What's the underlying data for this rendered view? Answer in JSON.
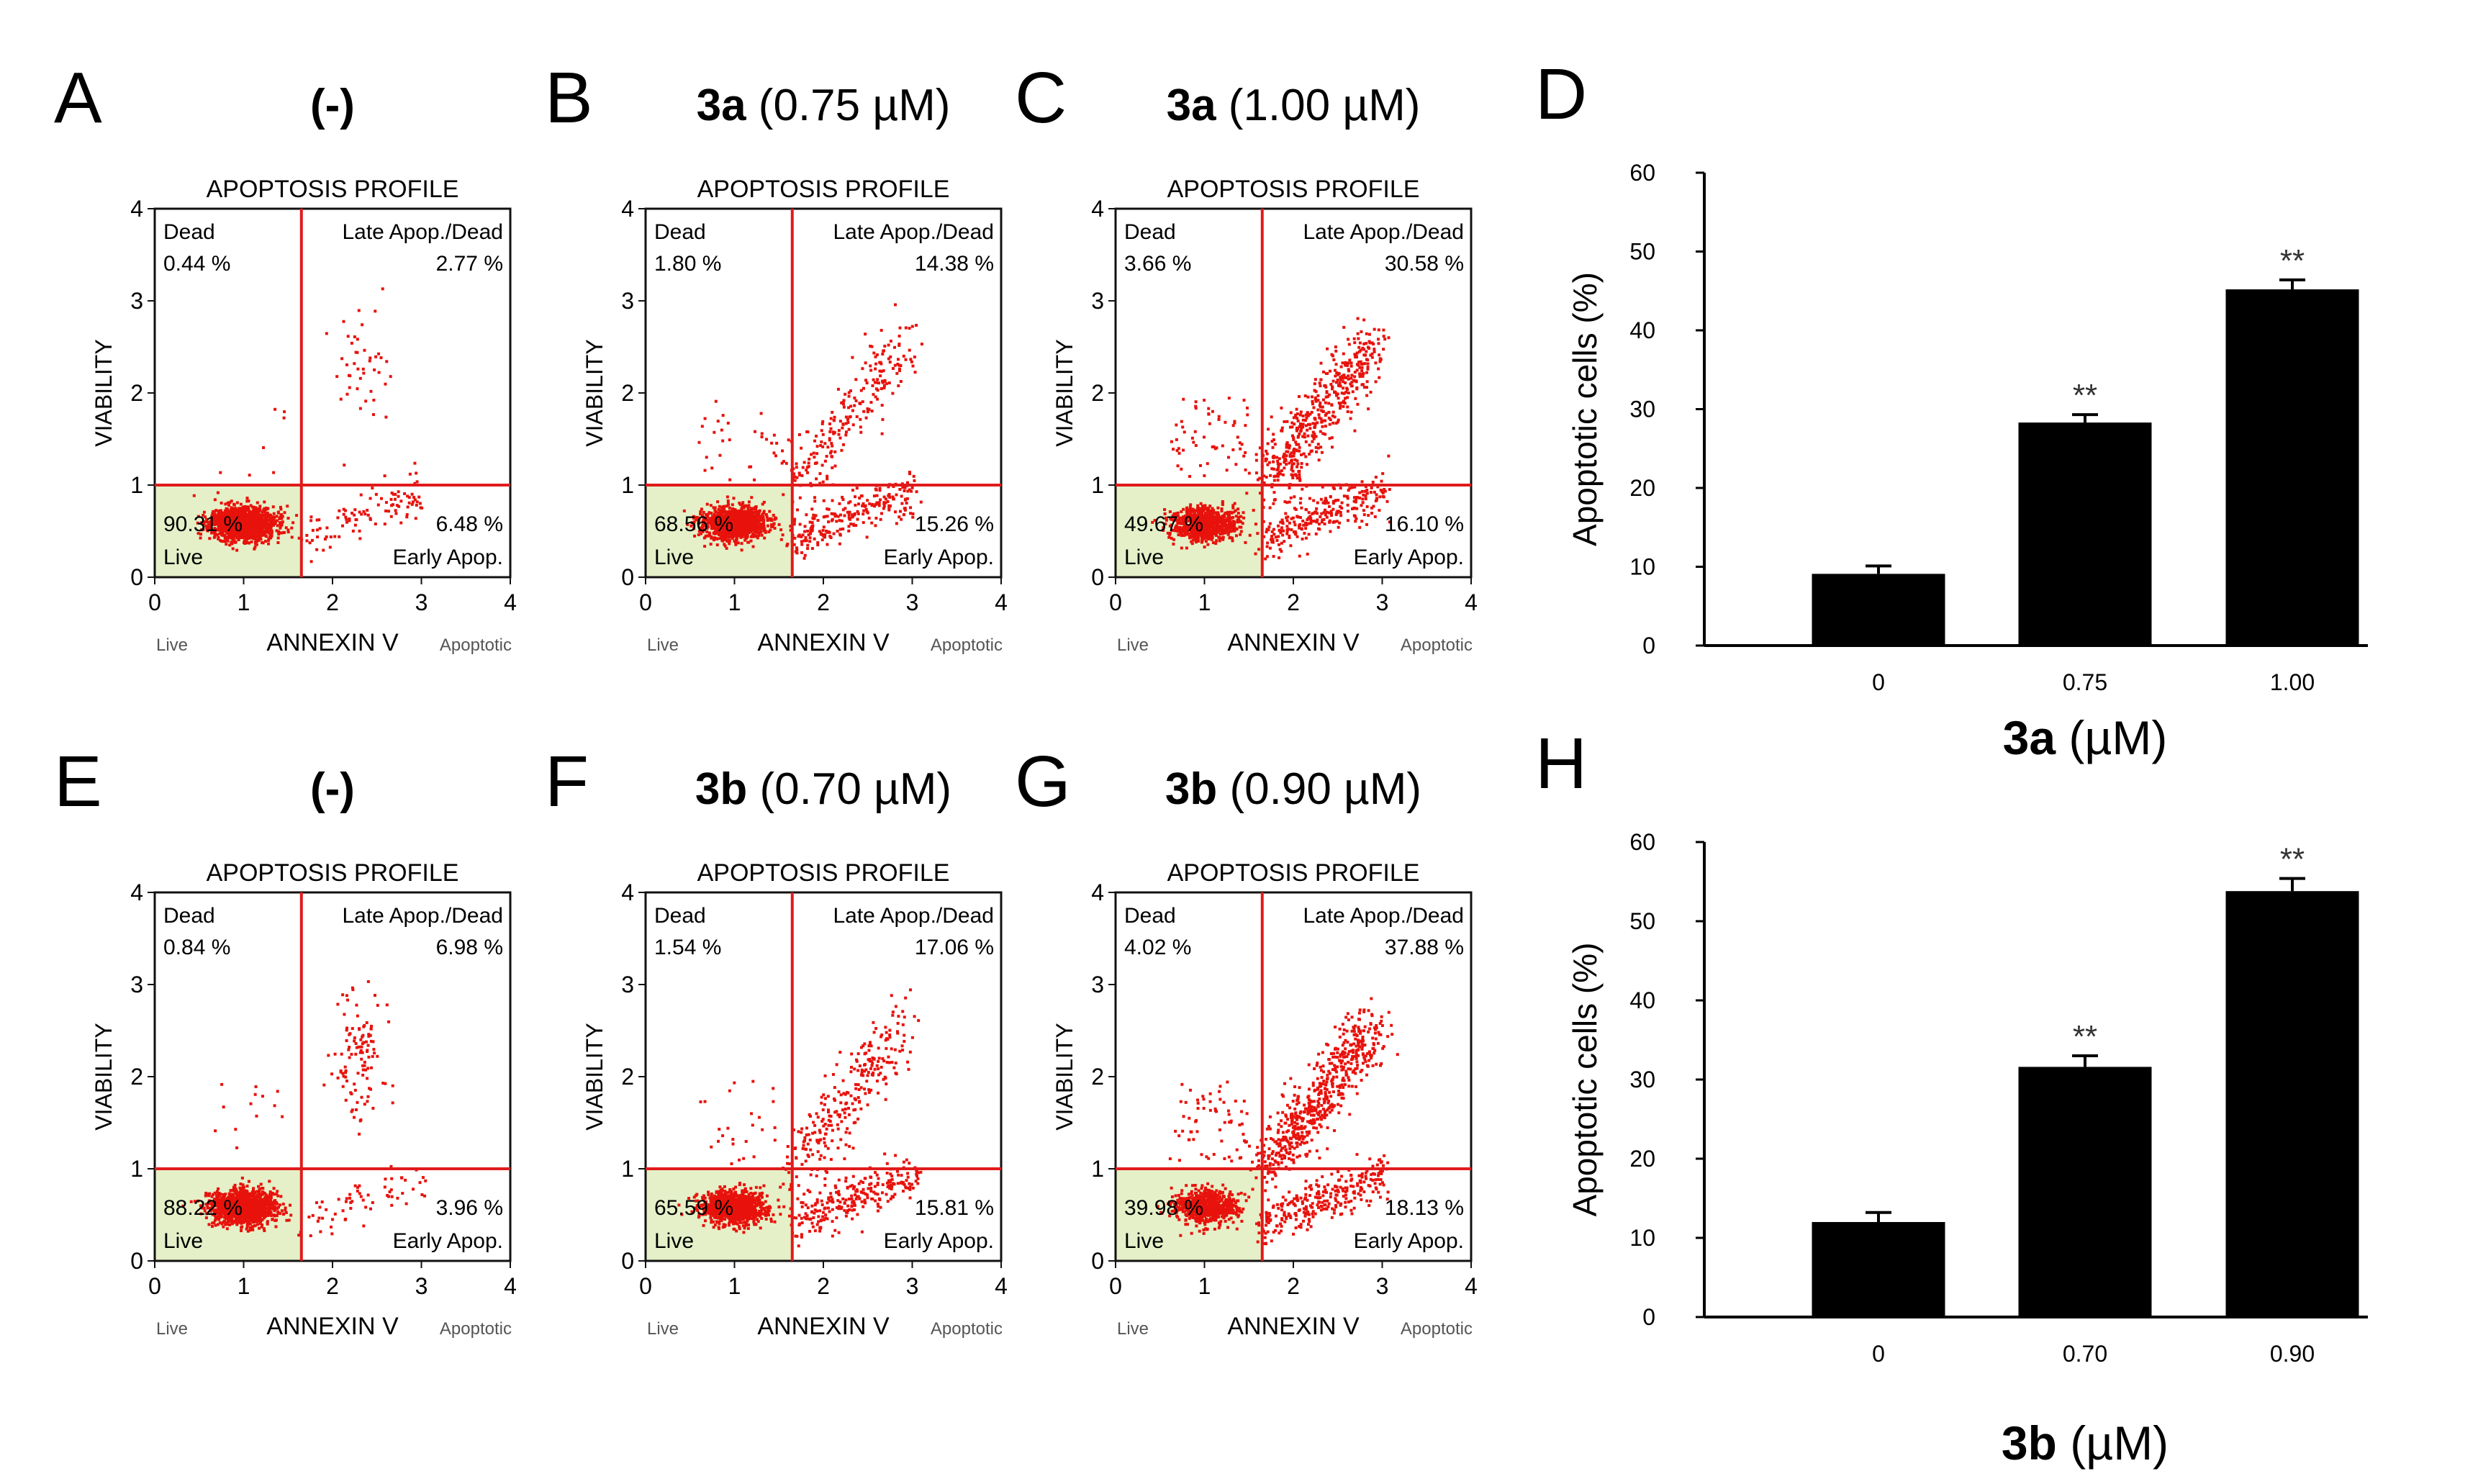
{
  "colors": {
    "quad_line": "#e01b1b",
    "live_fill": "#e5f0c8",
    "dot": "#e8120c",
    "bar": "#000000",
    "axis": "#000000",
    "text": "#000000",
    "subtle": "#555555"
  },
  "panels": [
    {
      "letter": "A",
      "bold": "",
      "title": "(-)",
      "seed": 11,
      "q": {
        "dead_label": "Dead",
        "dead_pct": "0.44 %",
        "late_label": "Late Apop./Dead",
        "late_pct": "2.77 %",
        "live_label": "Live",
        "live_pct": "90.31 %",
        "early_label": "Early Apop.",
        "early_pct": "6.48 %"
      }
    },
    {
      "letter": "B",
      "bold": "3a",
      "title": " (0.75 µM)",
      "seed": 23,
      "q": {
        "dead_label": "Dead",
        "dead_pct": "1.80 %",
        "late_label": "Late Apop./Dead",
        "late_pct": "14.38 %",
        "live_label": "Live",
        "live_pct": "68.56 %",
        "early_label": "Early Apop.",
        "early_pct": "15.26 %"
      }
    },
    {
      "letter": "C",
      "bold": "3a",
      "title": " (1.00 µM)",
      "seed": 37,
      "q": {
        "dead_label": "Dead",
        "dead_pct": "3.66 %",
        "late_label": "Late Apop./Dead",
        "late_pct": "30.58 %",
        "live_label": "Live",
        "live_pct": "49.67 %",
        "early_label": "Early Apop.",
        "early_pct": "16.10 %"
      }
    },
    {
      "letter": "E",
      "bold": "",
      "title": "(-)",
      "seed": 41,
      "q": {
        "dead_label": "Dead",
        "dead_pct": "0.84 %",
        "late_label": "Late Apop./Dead",
        "late_pct": "6.98 %",
        "live_label": "Live",
        "live_pct": "88.22 %",
        "early_label": "Early Apop.",
        "early_pct": "3.96 %"
      }
    },
    {
      "letter": "F",
      "bold": "3b",
      "title": " (0.70 µM)",
      "seed": 53,
      "q": {
        "dead_label": "Dead",
        "dead_pct": "1.54 %",
        "late_label": "Late Apop./Dead",
        "late_pct": "17.06 %",
        "live_label": "Live",
        "live_pct": "65.59 %",
        "early_label": "Early Apop.",
        "early_pct": "15.81 %"
      }
    },
    {
      "letter": "G",
      "bold": "3b",
      "title": " (0.90 µM)",
      "seed": 67,
      "q": {
        "dead_label": "Dead",
        "dead_pct": "4.02 %",
        "late_label": "Late Apop./Dead",
        "late_pct": "37.88 %",
        "live_label": "Live",
        "live_pct": "39.98 %",
        "early_label": "Early Apop.",
        "early_pct": "18.13 %"
      }
    }
  ],
  "profile_common": {
    "title": "APOPTOSIS PROFILE",
    "ylabel": "VIABILITY",
    "xlabel": "ANNEXIN V",
    "x_left_label": "Live",
    "x_right_label": "Apoptotic",
    "x_ticks": [
      "0",
      "1",
      "2",
      "3",
      "4"
    ],
    "y_ticks": [
      "0",
      "1",
      "2",
      "3",
      "4"
    ]
  },
  "chart_data": [
    {
      "type": "bar",
      "letter": "D",
      "categories": [
        "0",
        "0.75",
        "1.00"
      ],
      "values": [
        9.1,
        28.3,
        45.2
      ],
      "errors": [
        1.0,
        1.0,
        1.2
      ],
      "significance": [
        "",
        "**",
        "**"
      ],
      "ylabel": "Apoptotic cells (%)",
      "xlabel_bold": "3a",
      "xlabel_rest": " (µM)",
      "ylim": [
        0,
        60
      ],
      "yticks": [
        "0",
        "10",
        "20",
        "30",
        "40",
        "50",
        "60"
      ]
    },
    {
      "type": "bar",
      "letter": "H",
      "categories": [
        "0",
        "0.70",
        "0.90"
      ],
      "values": [
        12.0,
        31.6,
        53.8
      ],
      "errors": [
        1.2,
        1.4,
        1.6
      ],
      "significance": [
        "",
        "**",
        "**"
      ],
      "ylabel": "Apoptotic cells (%)",
      "xlabel_bold": "3b",
      "xlabel_rest": " (µM)",
      "ylim": [
        0,
        60
      ],
      "yticks": [
        "0",
        "10",
        "20",
        "30",
        "40",
        "50",
        "60"
      ]
    }
  ]
}
